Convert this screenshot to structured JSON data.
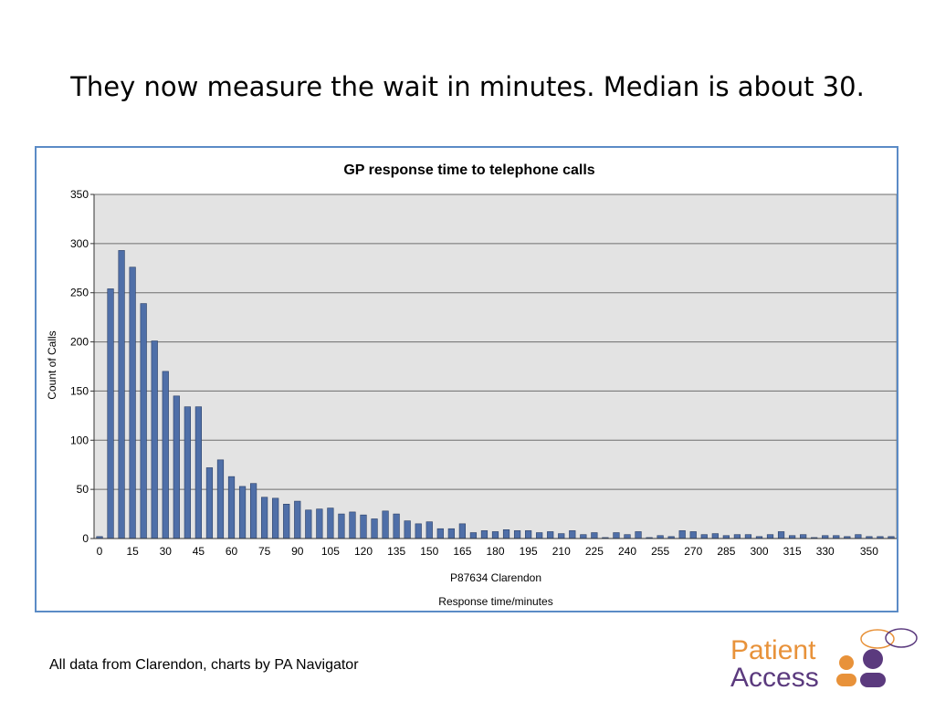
{
  "slide": {
    "title": "They now measure the wait in minutes.  Median is about 30.",
    "footnote": "All data from Clarendon, charts by PA Navigator"
  },
  "logo": {
    "line1": "Patient",
    "line2": "Access"
  },
  "colors": {
    "bar": "#4f6fa8",
    "bar_stroke": "#2a3f66",
    "plot_bg": "#e3e3e3",
    "frame": "#5b8bc6",
    "logo_orange": "#e8923a",
    "logo_purple": "#5b3a7e"
  },
  "chart_data": {
    "type": "bar",
    "title": "GP response time to telephone calls",
    "xlabel_line1": "P87634 Clarendon",
    "xlabel": "Response time/minutes",
    "ylabel": "Count of Calls",
    "ylim": [
      0,
      350
    ],
    "yticks": [
      0,
      50,
      100,
      150,
      200,
      250,
      300,
      350
    ],
    "grid": true,
    "legend": "none",
    "categories": [
      0,
      5,
      10,
      15,
      20,
      25,
      30,
      35,
      40,
      45,
      50,
      55,
      60,
      65,
      70,
      75,
      80,
      85,
      90,
      95,
      100,
      105,
      110,
      115,
      120,
      125,
      130,
      135,
      140,
      145,
      150,
      155,
      160,
      165,
      170,
      175,
      180,
      185,
      190,
      195,
      200,
      205,
      210,
      215,
      220,
      225,
      230,
      235,
      240,
      245,
      250,
      255,
      260,
      265,
      270,
      275,
      280,
      285,
      290,
      295,
      300,
      305,
      310,
      315,
      320,
      325,
      330,
      335,
      340,
      345,
      350,
      355,
      360
    ],
    "tick_labels": [
      0,
      15,
      30,
      45,
      60,
      75,
      90,
      105,
      120,
      135,
      150,
      165,
      180,
      195,
      210,
      225,
      240,
      255,
      270,
      285,
      300,
      315,
      330,
      350
    ],
    "values": [
      2,
      254,
      293,
      276,
      239,
      201,
      170,
      145,
      134,
      134,
      72,
      80,
      63,
      53,
      56,
      42,
      41,
      35,
      38,
      29,
      30,
      31,
      25,
      27,
      24,
      20,
      28,
      25,
      18,
      15,
      17,
      10,
      10,
      15,
      6,
      8,
      7,
      9,
      8,
      8,
      6,
      7,
      5,
      8,
      4,
      6,
      1,
      6,
      4,
      7,
      1,
      3,
      2,
      8,
      7,
      4,
      5,
      3,
      4,
      4,
      2,
      4,
      7,
      3,
      4,
      1,
      3,
      3,
      2,
      4,
      2,
      2,
      2
    ]
  }
}
